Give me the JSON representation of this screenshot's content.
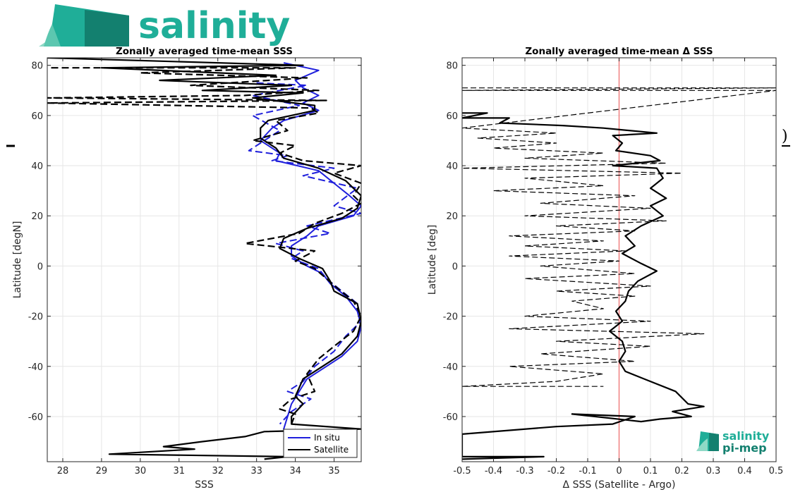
{
  "brand": {
    "name": "salinity",
    "small_name": "salinity",
    "small_sub": "pi-mep",
    "color": "#1fae98",
    "color_dark": "#13806f"
  },
  "chart_data": [
    {
      "type": "line",
      "title": "Zonally averaged time-mean SSS",
      "xlabel": "SSS",
      "ylabel": "Latitude [degN]",
      "xlim": [
        27.6,
        35.7
      ],
      "ylim": [
        -78,
        83
      ],
      "xticks": [
        28,
        29,
        30,
        31,
        32,
        33,
        34,
        35
      ],
      "yticks": [
        -60,
        -40,
        -20,
        0,
        20,
        40,
        60,
        80
      ],
      "grid": true,
      "legend_position": "bottom-right",
      "series": [
        {
          "name": "In situ",
          "color": "#1f1fdc",
          "style": "solid",
          "width": 2,
          "points": [
            [
              33.7,
              81
            ],
            [
              34.6,
              78
            ],
            [
              34.0,
              74
            ],
            [
              34.2,
              71
            ],
            [
              34.6,
              68
            ],
            [
              34.2,
              65
            ],
            [
              34.6,
              62
            ],
            [
              33.7,
              58
            ],
            [
              33.4,
              55
            ],
            [
              33.1,
              50
            ],
            [
              33.6,
              45
            ],
            [
              33.5,
              42
            ],
            [
              34.6,
              38
            ],
            [
              35.0,
              33
            ],
            [
              35.4,
              28
            ],
            [
              35.7,
              24
            ],
            [
              35.5,
              20
            ],
            [
              34.6,
              16
            ],
            [
              34.3,
              12
            ],
            [
              33.9,
              8
            ],
            [
              33.9,
              4
            ],
            [
              34.3,
              0
            ],
            [
              34.7,
              -3
            ],
            [
              34.9,
              -7
            ],
            [
              35.3,
              -12
            ],
            [
              35.6,
              -18
            ],
            [
              35.7,
              -24
            ],
            [
              35.6,
              -30
            ],
            [
              35.2,
              -36
            ],
            [
              34.8,
              -40
            ],
            [
              34.3,
              -45
            ],
            [
              34.1,
              -50
            ],
            [
              33.9,
              -55
            ],
            [
              33.8,
              -60
            ],
            [
              33.7,
              -65
            ],
            [
              33.9,
              -71
            ],
            [
              34.2,
              -76
            ]
          ]
        },
        {
          "name": "",
          "color": "#1f1fdc",
          "style": "dashed",
          "width": 2,
          "points": [
            [
              33.0,
              73
            ],
            [
              34.3,
              72
            ],
            [
              32.9,
              68
            ],
            [
              34.1,
              64
            ],
            [
              32.9,
              60
            ],
            [
              33.6,
              54
            ],
            [
              32.8,
              46
            ],
            [
              33.8,
              44
            ],
            [
              33.4,
              42
            ],
            [
              35.0,
              39
            ],
            [
              34.2,
              36
            ],
            [
              35.6,
              31
            ],
            [
              35.0,
              24
            ],
            [
              35.7,
              21
            ],
            [
              34.3,
              16
            ],
            [
              34.9,
              13
            ],
            [
              33.5,
              9
            ],
            [
              34.2,
              6
            ],
            [
              33.9,
              3
            ],
            [
              34.6,
              -1
            ],
            [
              34.8,
              -5
            ],
            [
              35.2,
              -10
            ],
            [
              35.6,
              -15
            ],
            [
              35.7,
              -22
            ],
            [
              35.3,
              -28
            ],
            [
              35.0,
              -34
            ],
            [
              34.5,
              -40
            ],
            [
              34.2,
              -46
            ],
            [
              33.8,
              -50
            ],
            [
              34.4,
              -53
            ],
            [
              33.9,
              -58
            ],
            [
              33.6,
              -63
            ]
          ]
        },
        {
          "name": "Satellite",
          "color": "#000000",
          "style": "solid",
          "width": 2.2,
          "points": [
            [
              27.6,
              83
            ],
            [
              34.2,
              80
            ],
            [
              29.0,
              79
            ],
            [
              33.5,
              76
            ],
            [
              30.5,
              74
            ],
            [
              33.9,
              72
            ],
            [
              31.6,
              70
            ],
            [
              34.2,
              69
            ],
            [
              32.9,
              67
            ],
            [
              34.5,
              64
            ],
            [
              34.5,
              62
            ],
            [
              33.3,
              58
            ],
            [
              33.1,
              55
            ],
            [
              33.1,
              51
            ],
            [
              33.5,
              47
            ],
            [
              33.7,
              43
            ],
            [
              34.6,
              39
            ],
            [
              35.3,
              34
            ],
            [
              35.7,
              28
            ],
            [
              35.6,
              23
            ],
            [
              35.2,
              19
            ],
            [
              34.3,
              15
            ],
            [
              33.7,
              11
            ],
            [
              33.6,
              7
            ],
            [
              34.1,
              3
            ],
            [
              34.7,
              -1
            ],
            [
              34.9,
              -6
            ],
            [
              35.0,
              -10
            ],
            [
              35.6,
              -15
            ],
            [
              35.7,
              -22
            ],
            [
              35.6,
              -28
            ],
            [
              35.2,
              -35
            ],
            [
              34.7,
              -40
            ],
            [
              34.2,
              -45
            ],
            [
              34.0,
              -52
            ],
            [
              34.2,
              -55
            ],
            [
              33.9,
              -60
            ],
            [
              33.9,
              -63
            ],
            [
              35.7,
              -65
            ],
            [
              33.2,
              -66
            ],
            [
              32.7,
              -68
            ],
            [
              31.6,
              -70
            ],
            [
              30.6,
              -72
            ],
            [
              31.4,
              -73
            ],
            [
              29.2,
              -75
            ],
            [
              33.8,
              -76
            ],
            [
              33.2,
              -77
            ]
          ]
        },
        {
          "name": "",
          "color": "#000000",
          "style": "dashed",
          "width": 2.2,
          "points": [
            [
              27.7,
              79
            ],
            [
              34.0,
              79
            ],
            [
              30.0,
              77
            ],
            [
              34.3,
              75
            ],
            [
              31.3,
              72
            ],
            [
              34.6,
              70
            ],
            [
              32.7,
              68
            ],
            [
              27.6,
              67
            ],
            [
              34.8,
              66
            ],
            [
              27.6,
              65
            ],
            [
              34.4,
              63
            ],
            [
              34.6,
              61
            ],
            [
              33.5,
              58
            ],
            [
              33.8,
              54
            ],
            [
              32.9,
              50
            ],
            [
              34.0,
              48
            ],
            [
              33.6,
              45
            ],
            [
              34.2,
              42
            ],
            [
              35.7,
              40
            ],
            [
              35.0,
              37
            ],
            [
              35.7,
              33
            ],
            [
              35.5,
              28
            ],
            [
              35.7,
              25
            ],
            [
              35.2,
              21
            ],
            [
              34.5,
              17
            ],
            [
              34.1,
              13
            ],
            [
              32.7,
              9
            ],
            [
              34.5,
              6
            ],
            [
              34.0,
              2
            ],
            [
              34.5,
              -1
            ],
            [
              34.8,
              -5
            ],
            [
              35.1,
              -9
            ],
            [
              35.5,
              -14
            ],
            [
              35.7,
              -20
            ],
            [
              35.5,
              -26
            ],
            [
              35.0,
              -32
            ],
            [
              34.6,
              -37
            ],
            [
              34.3,
              -43
            ],
            [
              34.5,
              -50
            ],
            [
              33.9,
              -53
            ],
            [
              33.6,
              -57
            ],
            [
              34.0,
              -59
            ],
            [
              33.9,
              -63
            ]
          ]
        }
      ]
    },
    {
      "type": "line",
      "title": "Zonally averaged time-mean Δ SSS",
      "xlabel": "Δ SSS (Satellite - Argo)",
      "ylabel": "Latitude [deg]",
      "xlim": [
        -0.5,
        0.5
      ],
      "ylim": [
        -78,
        83
      ],
      "xticks": [
        -0.5,
        -0.4,
        -0.3,
        -0.2,
        -0.1,
        0,
        0.1,
        0.2,
        0.3,
        0.4,
        0.5
      ],
      "xtick_labels": [
        "-0.5",
        "-0.4",
        "-0.3",
        "-0.2",
        "-0.1",
        "0",
        "0.1",
        "0.2",
        "0.3",
        "0.4",
        "0.5"
      ],
      "yticks": [
        -60,
        -40,
        -20,
        0,
        20,
        40,
        60,
        80
      ],
      "grid": true,
      "zero_line_color": "#f08080",
      "series": [
        {
          "name": "",
          "color": "#000000",
          "style": "solid",
          "width": 2.2,
          "points": [
            [
              -0.5,
              61
            ],
            [
              -0.42,
              61
            ],
            [
              -0.5,
              59
            ],
            [
              -0.35,
              59
            ],
            [
              -0.38,
              57
            ],
            [
              -0.18,
              56
            ],
            [
              -0.05,
              55
            ],
            [
              0.12,
              53
            ],
            [
              -0.02,
              52
            ],
            [
              0.01,
              49
            ],
            [
              -0.01,
              46
            ],
            [
              0.1,
              44
            ],
            [
              0.13,
              42
            ],
            [
              -0.02,
              40
            ],
            [
              0.12,
              39
            ],
            [
              0.14,
              35
            ],
            [
              0.1,
              31
            ],
            [
              0.15,
              27
            ],
            [
              0.1,
              24
            ],
            [
              0.14,
              20
            ],
            [
              0.07,
              16
            ],
            [
              0.02,
              12
            ],
            [
              0.05,
              8
            ],
            [
              0.01,
              5
            ],
            [
              0.07,
              1
            ],
            [
              0.12,
              -2
            ],
            [
              0.06,
              -6
            ],
            [
              0.03,
              -10
            ],
            [
              0.02,
              -14
            ],
            [
              -0.01,
              -18
            ],
            [
              0.01,
              -22
            ],
            [
              -0.03,
              -26
            ],
            [
              0.01,
              -30
            ],
            [
              0.02,
              -34
            ],
            [
              0.0,
              -38
            ],
            [
              0.02,
              -42
            ],
            [
              0.08,
              -45
            ],
            [
              0.18,
              -50
            ],
            [
              0.22,
              -55
            ],
            [
              0.27,
              -56
            ],
            [
              0.17,
              -58
            ],
            [
              0.23,
              -60
            ],
            [
              0.13,
              -61
            ],
            [
              0.07,
              -62
            ],
            [
              -0.15,
              -59
            ],
            [
              0.05,
              -60
            ],
            [
              -0.02,
              -63
            ],
            [
              -0.2,
              -64
            ],
            [
              -0.5,
              -67
            ],
            [
              -0.5,
              -76
            ],
            [
              -0.24,
              -76
            ],
            [
              -0.5,
              -77
            ]
          ]
        },
        {
          "name": "",
          "color": "#000000",
          "style": "dashed",
          "width": 1.2,
          "points": [
            [
              -0.5,
              71
            ],
            [
              0.5,
              71
            ],
            [
              -0.5,
              70
            ],
            [
              0.5,
              70
            ],
            [
              -0.5,
              55
            ],
            [
              -0.2,
              53
            ],
            [
              -0.45,
              51
            ],
            [
              -0.2,
              49
            ],
            [
              -0.4,
              47
            ],
            [
              -0.05,
              45
            ],
            [
              -0.3,
              43
            ],
            [
              0.15,
              41
            ],
            [
              -0.5,
              39
            ],
            [
              0.2,
              37
            ],
            [
              -0.3,
              35
            ],
            [
              -0.05,
              32
            ],
            [
              -0.4,
              30
            ],
            [
              0.05,
              28
            ],
            [
              -0.25,
              25
            ],
            [
              0.1,
              23
            ],
            [
              -0.3,
              20
            ],
            [
              0.15,
              18
            ],
            [
              -0.2,
              16
            ],
            [
              0.05,
              14
            ],
            [
              -0.35,
              12
            ],
            [
              -0.05,
              10
            ],
            [
              -0.3,
              8
            ],
            [
              0.02,
              6
            ],
            [
              -0.35,
              4
            ],
            [
              0.0,
              2
            ],
            [
              -0.25,
              0
            ],
            [
              0.05,
              -3
            ],
            [
              -0.3,
              -5
            ],
            [
              0.1,
              -8
            ],
            [
              -0.2,
              -10
            ],
            [
              0.05,
              -12
            ],
            [
              -0.15,
              -14
            ],
            [
              -0.05,
              -17
            ],
            [
              -0.3,
              -20
            ],
            [
              0.1,
              -22
            ],
            [
              -0.35,
              -25
            ],
            [
              0.27,
              -27
            ],
            [
              -0.2,
              -30
            ],
            [
              0.1,
              -32
            ],
            [
              -0.25,
              -35
            ],
            [
              0.05,
              -38
            ],
            [
              -0.35,
              -40
            ],
            [
              -0.05,
              -43
            ],
            [
              -0.2,
              -46
            ],
            [
              -0.5,
              -48
            ],
            [
              -0.05,
              -48
            ]
          ]
        }
      ]
    }
  ]
}
